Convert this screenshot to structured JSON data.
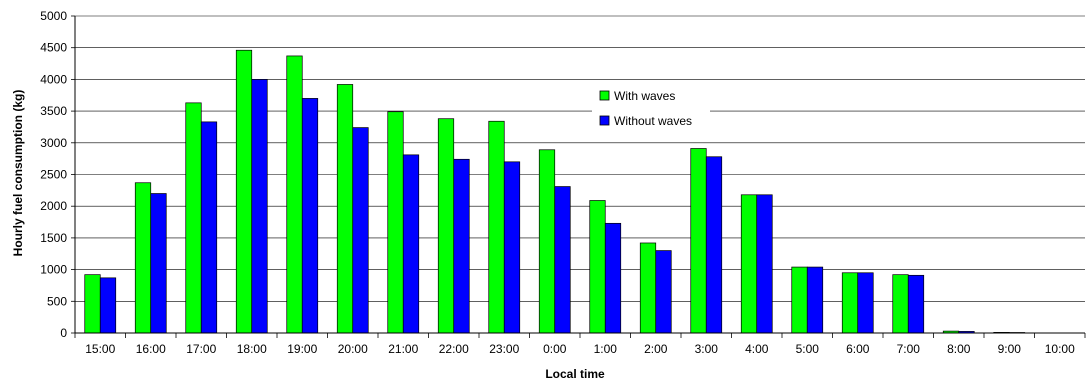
{
  "chart_data": {
    "type": "bar",
    "title": "",
    "xlabel": "Local time",
    "ylabel": "Hourly fuel consumption (kg)",
    "ylim": [
      0,
      5000
    ],
    "ytick_step": 500,
    "grid": true,
    "legend_position": "top-center-right",
    "categories": [
      "15:00",
      "16:00",
      "17:00",
      "18:00",
      "19:00",
      "20:00",
      "21:00",
      "22:00",
      "23:00",
      "0:00",
      "1:00",
      "2:00",
      "3:00",
      "4:00",
      "5:00",
      "6:00",
      "7:00",
      "8:00",
      "9:00",
      "10:00"
    ],
    "series": [
      {
        "name": "With waves",
        "color": "#00ff00",
        "values": [
          920,
          2370,
          3630,
          4460,
          4370,
          3920,
          3490,
          3380,
          3340,
          2890,
          2090,
          1420,
          2910,
          2180,
          1040,
          950,
          920,
          30,
          10,
          0
        ]
      },
      {
        "name": "Without waves",
        "color": "#0000ff",
        "values": [
          870,
          2200,
          3330,
          4000,
          3700,
          3240,
          2810,
          2740,
          2700,
          2310,
          1730,
          1300,
          2780,
          2180,
          1040,
          950,
          910,
          25,
          8,
          0
        ]
      }
    ]
  }
}
